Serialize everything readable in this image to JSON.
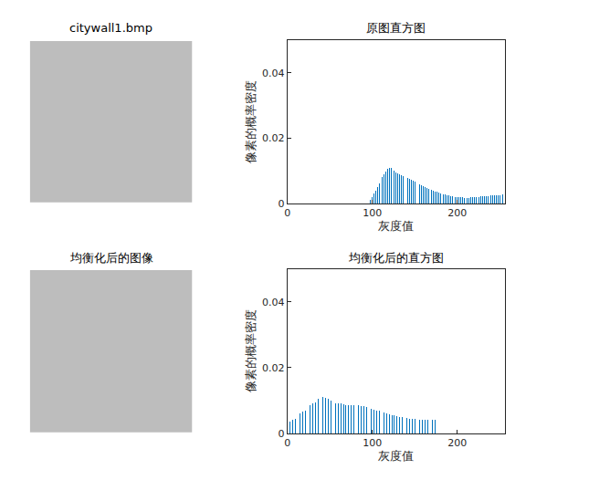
{
  "chart_data": [
    {
      "type": "image",
      "title": "citywall1.bmp"
    },
    {
      "type": "bar",
      "title": "原图直方图",
      "x_label": "灰度值",
      "y_label": "像素的概率密度",
      "color": "#0072bd",
      "xlim": [
        0,
        256
      ],
      "xticks": [
        0,
        100,
        200
      ],
      "ylim": [
        0,
        0.05
      ],
      "yticks": [
        0,
        0.02,
        0.04
      ],
      "grid": false,
      "x": [
        96,
        98,
        100,
        102,
        104,
        106,
        108,
        110,
        112,
        114,
        116,
        118,
        120,
        122,
        124,
        126,
        128,
        130,
        132,
        134,
        136,
        138,
        140,
        142,
        144,
        146,
        148,
        150,
        152,
        154,
        156,
        158,
        160,
        162,
        164,
        166,
        168,
        170,
        172,
        174,
        176,
        178,
        180,
        182,
        184,
        186,
        188,
        190,
        192,
        194,
        196,
        198,
        200,
        202,
        204,
        206,
        208,
        210,
        212,
        214,
        216,
        218,
        220,
        222,
        224,
        226,
        228,
        230,
        232,
        234,
        236,
        238,
        240,
        242,
        244,
        246,
        248,
        250,
        252,
        254
      ],
      "values": [
        0.0005,
        0.001,
        0.002,
        0.003,
        0.004,
        0.005,
        0.006,
        0.007,
        0.008,
        0.009,
        0.0097,
        0.0105,
        0.011,
        0.0108,
        0.0105,
        0.01,
        0.0095,
        0.0092,
        0.0088,
        0.0085,
        0.0083,
        0.0082,
        0.0081,
        0.0078,
        0.0075,
        0.0072,
        0.0069,
        0.0066,
        0.0063,
        0.006,
        0.0057,
        0.0055,
        0.0052,
        0.005,
        0.0047,
        0.0045,
        0.0043,
        0.0041,
        0.0039,
        0.0037,
        0.0035,
        0.0033,
        0.0031,
        0.003,
        0.0028,
        0.0027,
        0.0026,
        0.0024,
        0.0023,
        0.0022,
        0.0021,
        0.002,
        0.0019,
        0.0019,
        0.0018,
        0.0018,
        0.0017,
        0.0017,
        0.0017,
        0.0017,
        0.0018,
        0.0018,
        0.0019,
        0.0019,
        0.002,
        0.002,
        0.0021,
        0.0021,
        0.0022,
        0.0022,
        0.0023,
        0.0023,
        0.0024,
        0.0024,
        0.0025,
        0.0025,
        0.0026,
        0.0026,
        0.0026,
        0.0027
      ]
    },
    {
      "type": "image",
      "title": "均衡化后的图像"
    },
    {
      "type": "bar",
      "title": "均衡化后的直方图",
      "x_label": "灰度值",
      "y_label": "像素的概率密度",
      "color": "#0072bd",
      "xlim": [
        0,
        256
      ],
      "xticks": [
        0,
        100,
        200
      ],
      "ylim": [
        0,
        0.05
      ],
      "yticks": [
        0,
        0.02,
        0.04
      ],
      "grid": false,
      "x": [
        0,
        3,
        6,
        9,
        12,
        15,
        18,
        21,
        24,
        27,
        30,
        33,
        36,
        39,
        42,
        45,
        48,
        51,
        54,
        57,
        60,
        63,
        66,
        69,
        72,
        75,
        78,
        81,
        84,
        87,
        90,
        93,
        96,
        99,
        102,
        105,
        108,
        111,
        114,
        117,
        120,
        123,
        126,
        129,
        132,
        135,
        138,
        141,
        144,
        147,
        150,
        153,
        156,
        159,
        162,
        165,
        168,
        171,
        174
      ],
      "values": [
        0.003,
        0.0035,
        0.004,
        0.0045,
        0.005,
        0.006,
        0.0065,
        0.007,
        0.008,
        0.0085,
        0.009,
        0.0095,
        0.0105,
        0.011,
        0.011,
        0.0108,
        0.0105,
        0.01,
        0.0095,
        0.0092,
        0.009,
        0.009,
        0.0088,
        0.0087,
        0.0087,
        0.0085,
        0.0086,
        0.0086,
        0.0085,
        0.0083,
        0.0082,
        0.008,
        0.0078,
        0.0075,
        0.0072,
        0.007,
        0.0068,
        0.0065,
        0.0063,
        0.006,
        0.0058,
        0.0056,
        0.0055,
        0.0053,
        0.005,
        0.005,
        0.0048,
        0.0047,
        0.0045,
        0.0044,
        0.0043,
        0.0042,
        0.0042,
        0.0041,
        0.0041,
        0.004,
        0.004,
        0.004,
        0.0042
      ]
    }
  ]
}
